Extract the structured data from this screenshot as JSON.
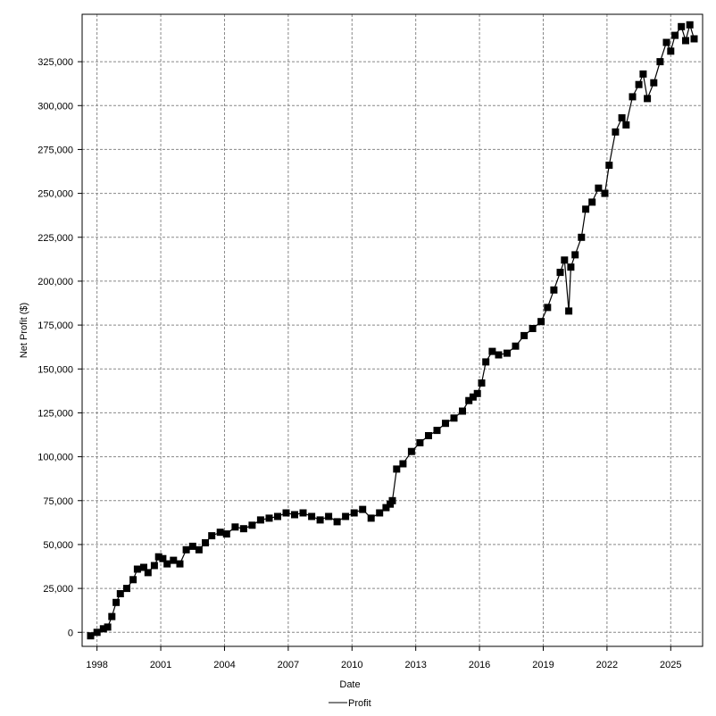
{
  "chart_data": {
    "type": "line",
    "title": "",
    "xlabel": "Date",
    "ylabel": "Net Profit ($)",
    "legend": {
      "placement": "bottom-center",
      "entries": [
        "Profit"
      ]
    },
    "grid": true,
    "xlim": [
      1997.3,
      2026.5
    ],
    "ylim": [
      -8000,
      352000
    ],
    "x_ticks": [
      1998,
      2001,
      2004,
      2007,
      2010,
      2013,
      2016,
      2019,
      2022,
      2025
    ],
    "x_tick_labels": [
      "1998",
      "2001",
      "2004",
      "2007",
      "2010",
      "2013",
      "2016",
      "2019",
      "2022",
      "2025"
    ],
    "y_ticks": [
      0,
      25000,
      50000,
      75000,
      100000,
      125000,
      150000,
      175000,
      200000,
      225000,
      250000,
      275000,
      300000,
      325000
    ],
    "y_tick_labels": [
      "0",
      "25,000",
      "50,000",
      "75,000",
      "100,000",
      "125,000",
      "150,000",
      "175,000",
      "200,000",
      "225,000",
      "250,000",
      "275,000",
      "300,000",
      "325,000"
    ],
    "colors": {
      "series": "#000000",
      "grid": "#888888",
      "background": "#ffffff"
    },
    "series": [
      {
        "name": "Profit",
        "x": [
          1997.7,
          1998.0,
          1998.3,
          1998.5,
          1998.7,
          1998.9,
          1999.1,
          1999.4,
          1999.7,
          1999.9,
          2000.2,
          2000.4,
          2000.7,
          2000.9,
          2001.1,
          2001.3,
          2001.6,
          2001.9,
          2002.2,
          2002.5,
          2002.8,
          2003.1,
          2003.4,
          2003.8,
          2004.1,
          2004.5,
          2004.9,
          2005.3,
          2005.7,
          2006.1,
          2006.5,
          2006.9,
          2007.3,
          2007.7,
          2008.1,
          2008.5,
          2008.9,
          2009.3,
          2009.7,
          2010.1,
          2010.5,
          2010.9,
          2011.3,
          2011.6,
          2011.8,
          2011.9,
          2012.1,
          2012.4,
          2012.8,
          2013.2,
          2013.6,
          2014.0,
          2014.4,
          2014.8,
          2015.2,
          2015.5,
          2015.7,
          2015.9,
          2016.1,
          2016.3,
          2016.6,
          2016.9,
          2017.3,
          2017.7,
          2018.1,
          2018.5,
          2018.9,
          2019.2,
          2019.5,
          2019.8,
          2020.0,
          2020.2,
          2020.3,
          2020.5,
          2020.8,
          2021.0,
          2021.3,
          2021.6,
          2021.9,
          2022.1,
          2022.4,
          2022.7,
          2022.9,
          2023.2,
          2023.5,
          2023.7,
          2023.9,
          2024.2,
          2024.5,
          2024.8,
          2025.0,
          2025.2,
          2025.5,
          2025.7,
          2025.9,
          2026.1
        ],
        "values": [
          -2000,
          0,
          2000,
          3000,
          9000,
          17000,
          22000,
          25000,
          30000,
          36000,
          37000,
          34000,
          38000,
          43000,
          42000,
          39000,
          41000,
          39000,
          47000,
          49000,
          47000,
          51000,
          55000,
          57000,
          56000,
          60000,
          59000,
          61000,
          64000,
          65000,
          66000,
          68000,
          67000,
          68000,
          66000,
          64000,
          66000,
          63000,
          66000,
          68000,
          70000,
          65000,
          68000,
          71000,
          73000,
          75000,
          93000,
          96000,
          103000,
          108000,
          112000,
          115000,
          119000,
          122000,
          126000,
          132000,
          134000,
          136000,
          142000,
          154000,
          160000,
          158000,
          159000,
          163000,
          169000,
          173000,
          177000,
          185000,
          195000,
          205000,
          212000,
          183000,
          208000,
          215000,
          225000,
          241000,
          245000,
          253000,
          250000,
          266000,
          285000,
          293000,
          289000,
          305000,
          312000,
          318000,
          304000,
          313000,
          325000,
          336000,
          331000,
          340000,
          345000,
          337000,
          346000,
          338000
        ]
      }
    ]
  }
}
